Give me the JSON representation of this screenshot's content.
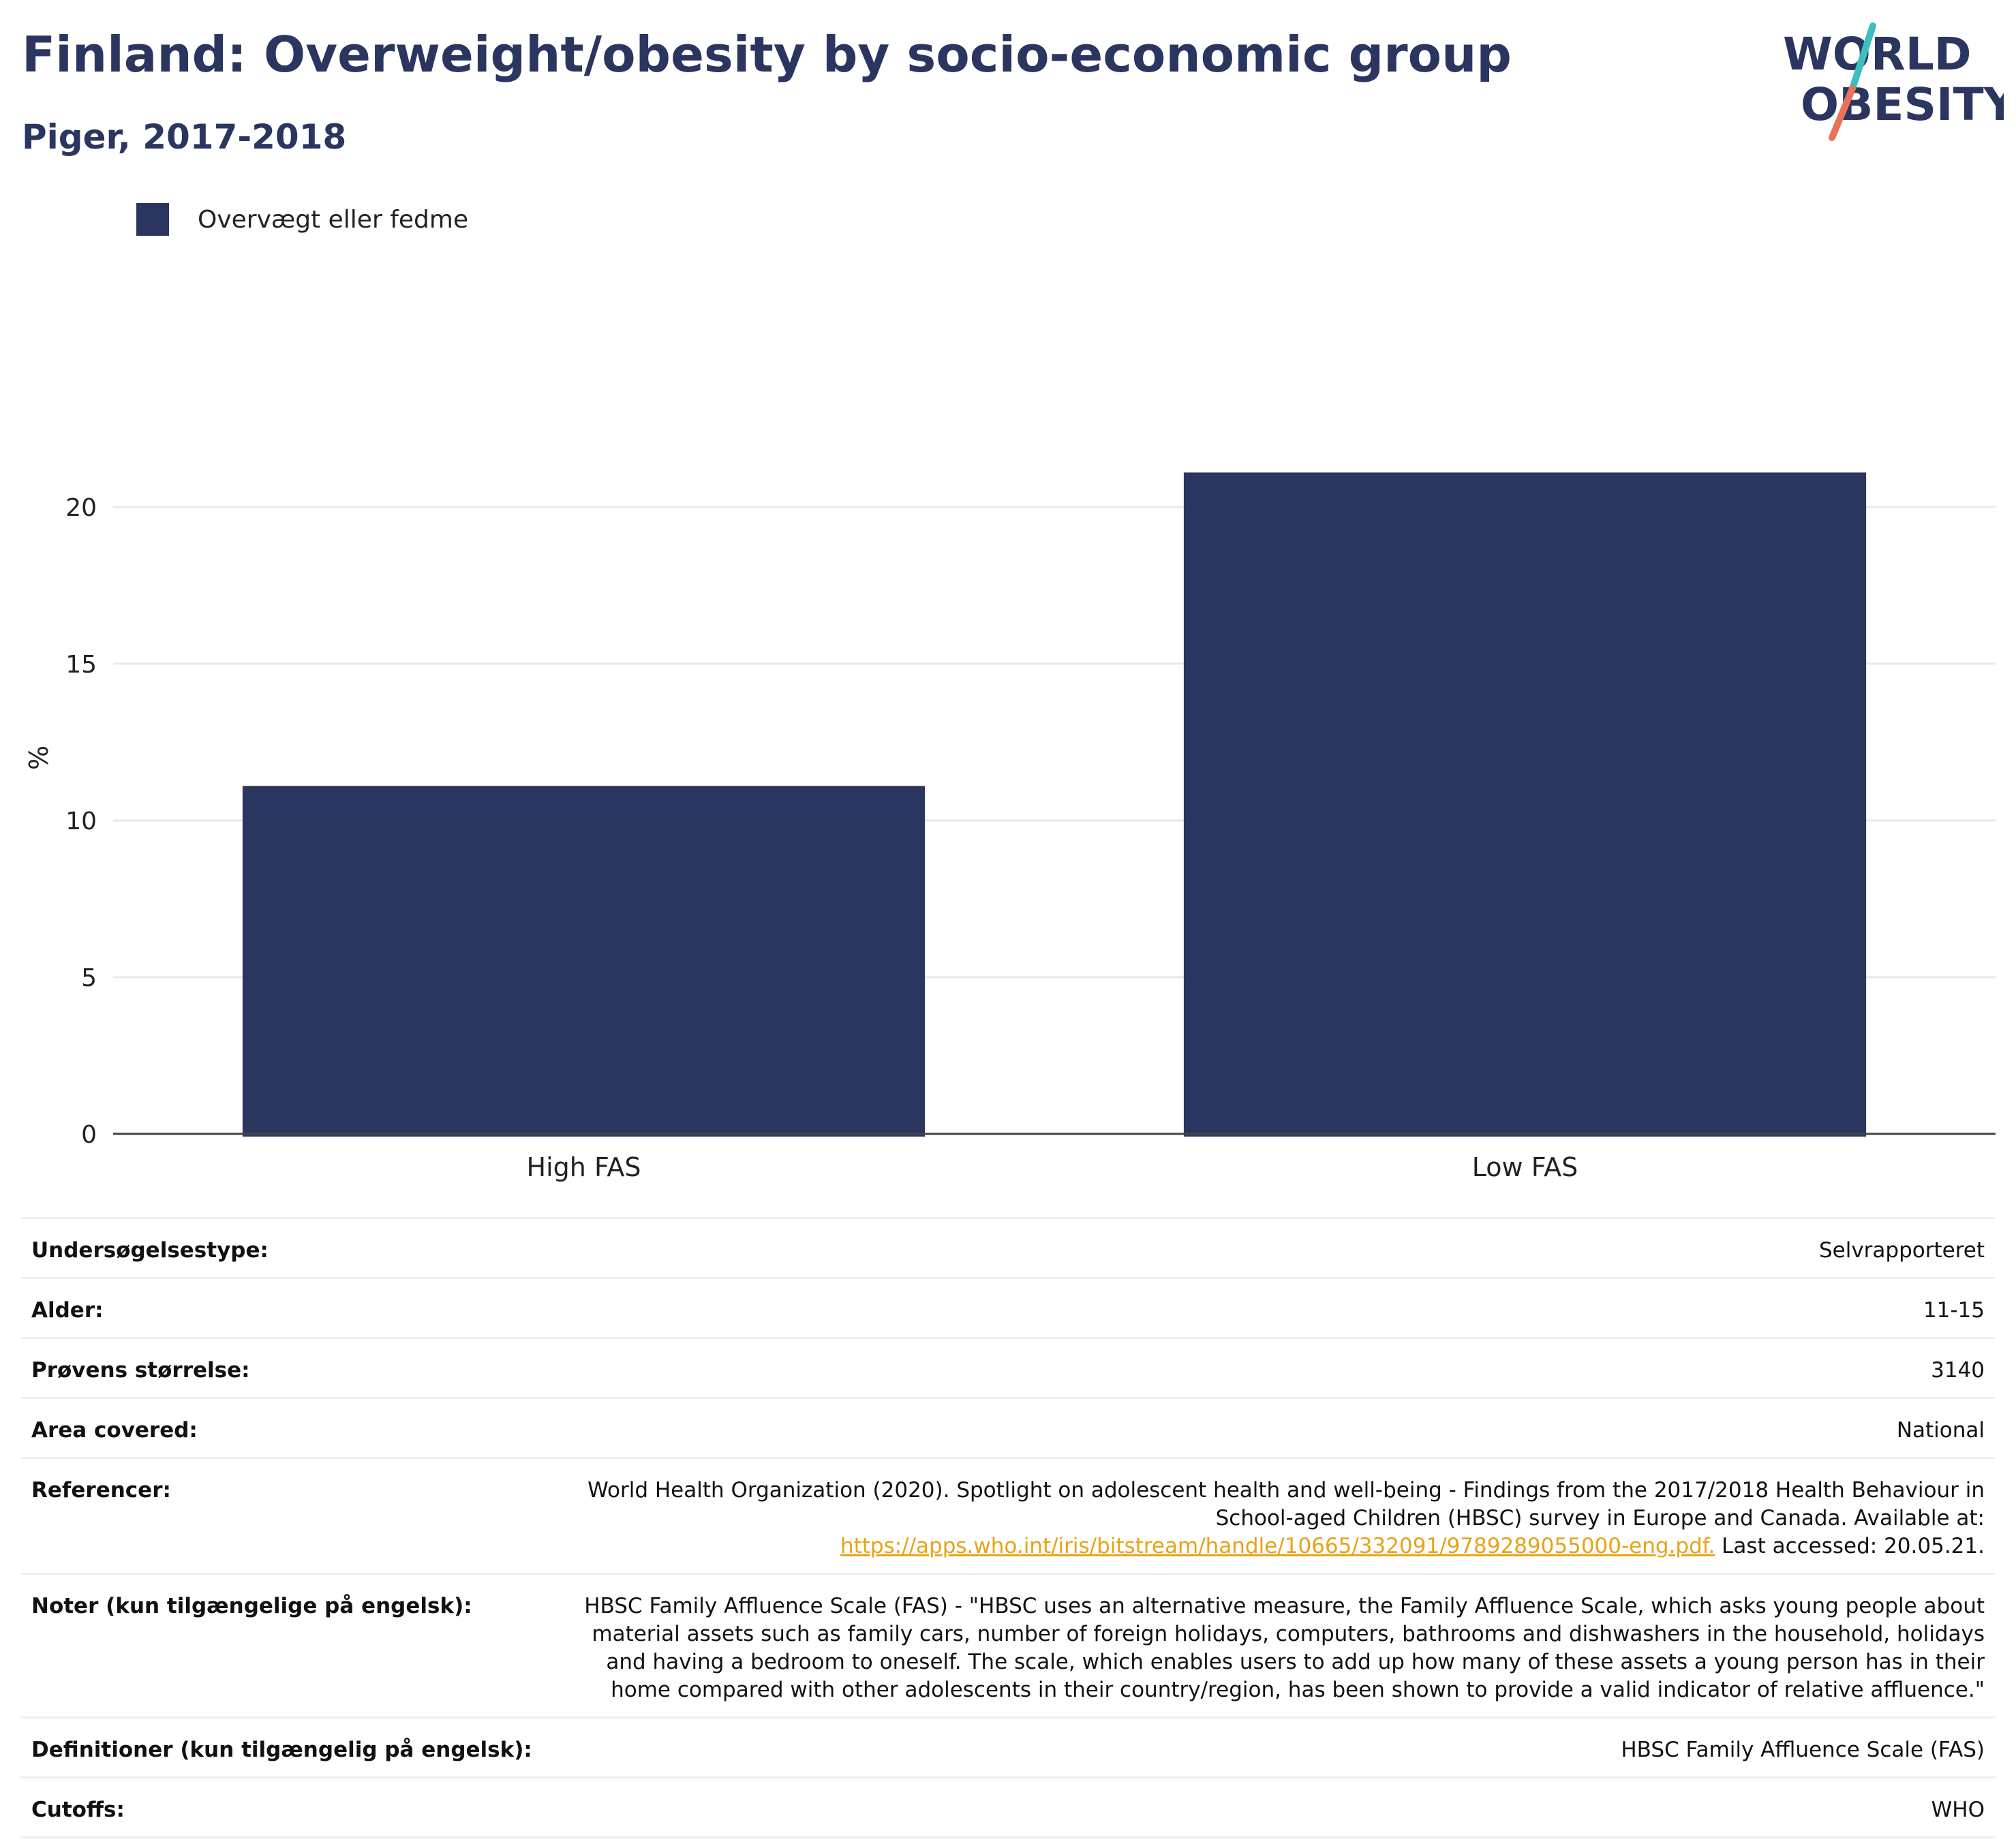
{
  "header": {
    "title": "Finland: Overweight/obesity by socio-economic group",
    "subtitle": "Piger, 2017-2018"
  },
  "logo": {
    "line1": "WORLD",
    "line2": "OBESITY",
    "colors": {
      "text": "#2b3660",
      "slash_top": "#3bbfbf",
      "slash_bottom": "#e8735a"
    }
  },
  "legend": {
    "label": "Overvægt eller fedme"
  },
  "chart_data": {
    "type": "bar",
    "categories": [
      "High FAS",
      "Low FAS"
    ],
    "series": [
      {
        "name": "Overvægt eller fedme",
        "values": [
          11.1,
          21.1
        ],
        "color": "#2b3660"
      }
    ],
    "ylabel": "%",
    "xlabel": "",
    "ylim": [
      0,
      24
    ],
    "yticks": [
      0,
      5,
      10,
      15,
      20
    ],
    "grid": true,
    "legend_position": "top-left"
  },
  "metadata": {
    "rows": [
      {
        "label": "Undersøgelsestype:",
        "value": "Selvrapporteret"
      },
      {
        "label": "Alder:",
        "value": "11-15"
      },
      {
        "label": "Prøvens størrelse:",
        "value": "3140"
      },
      {
        "label": "Area covered:",
        "value": "National"
      },
      {
        "label": "Referencer:",
        "value": "World Health Organization (2020). Spotlight on adolescent health and well-being - Findings from the 2017/2018 Health Behaviour in School-aged Children (HBSC) survey in Europe and Canada. Available at:",
        "link": "https://apps.who.int/iris/bitstream/handle/10665/332091/9789289055000-eng.pdf.",
        "suffix": " Last accessed: 20.05.21."
      },
      {
        "label": "Noter (kun tilgængelige på engelsk):",
        "value": "HBSC Family Affluence Scale (FAS) - \"HBSC uses an alternative measure, the Family Affluence Scale, which asks young people about material assets such as family cars, number of foreign holidays, computers, bathrooms and dishwashers in the household, holidays and having a bedroom to oneself. The scale, which enables users to add up how many of these assets a young person has in their home compared with other adolescents in their country/region, has been shown to provide a valid indicator of relative affluence.\""
      },
      {
        "label": "Definitioner (kun tilgængelig på engelsk):",
        "value": "HBSC Family Affluence Scale (FAS)"
      },
      {
        "label": "Cutoffs:",
        "value": "WHO"
      }
    ]
  }
}
